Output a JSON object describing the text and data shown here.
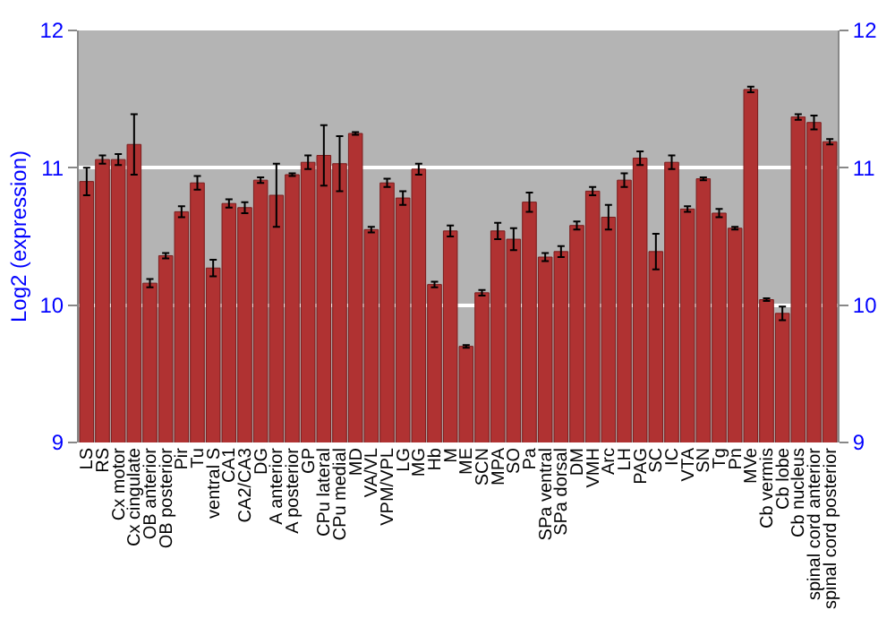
{
  "chart_data": {
    "type": "bar",
    "ylabel": "Log2 (expression)",
    "categories": [
      "LS",
      "RS",
      "Cx motor",
      "Cx cingulate",
      "OB anterior",
      "OB posterior",
      "Pir",
      "Tu",
      "ventral S",
      "CA1",
      "CA2/CA3",
      "DG",
      "A anterior",
      "A posterior",
      "GP",
      "CPu lateral",
      "CPu medial",
      "MD",
      "VA/VL",
      "VPM/VPL",
      "LG",
      "MG",
      "Hb",
      "M",
      "ME",
      "SCN",
      "MPA",
      "SO",
      "Pa",
      "SPa ventral",
      "SPa dorsal",
      "DM",
      "VMH",
      "Arc",
      "LH",
      "PAG",
      "SC",
      "IC",
      "VTA",
      "SN",
      "Tg",
      "Pn",
      "MVe",
      "Cb vermis",
      "Cb lobe",
      "Cb nucleus",
      "spinal cord anterior",
      "spinal cord posterior"
    ],
    "series": [
      {
        "color": "#b03232",
        "values": [
          10.9,
          11.06,
          11.06,
          11.17,
          10.16,
          10.36,
          10.68,
          10.89,
          10.27,
          10.74,
          10.71,
          10.91,
          10.8,
          10.95,
          11.04,
          11.09,
          11.03,
          11.25,
          10.55,
          10.89,
          10.78,
          10.99,
          10.15,
          10.54,
          9.7,
          10.09,
          10.54,
          10.48,
          10.75,
          10.35,
          10.39,
          10.58,
          10.83,
          10.64,
          10.91,
          11.07,
          10.39,
          11.04,
          10.7,
          10.92,
          10.67,
          10.56,
          11.57,
          10.04,
          9.94,
          11.37,
          11.33,
          11.19
        ],
        "errors": [
          0.1,
          0.03,
          0.04,
          0.22,
          0.03,
          0.02,
          0.04,
          0.05,
          0.06,
          0.03,
          0.04,
          0.02,
          0.23,
          0.01,
          0.05,
          0.22,
          0.2,
          0.01,
          0.02,
          0.03,
          0.05,
          0.04,
          0.02,
          0.04,
          0.01,
          0.02,
          0.06,
          0.08,
          0.07,
          0.03,
          0.04,
          0.03,
          0.03,
          0.09,
          0.05,
          0.05,
          0.13,
          0.05,
          0.02,
          0.01,
          0.03,
          0.01,
          0.02,
          0.01,
          0.05,
          0.02,
          0.05,
          0.02
        ]
      }
    ],
    "ylim": [
      9,
      12
    ],
    "yticks": [
      9,
      10,
      11,
      12
    ],
    "y2lim": [
      9,
      12
    ],
    "y2ticks": [
      9,
      10,
      11,
      12
    ],
    "grid": "y"
  }
}
